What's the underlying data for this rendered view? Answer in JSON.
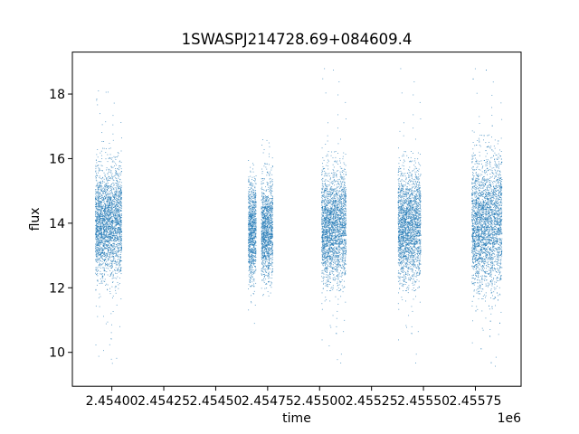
{
  "chart_data": {
    "type": "scatter",
    "title": "1SWASPJ214728.69+084609.4",
    "xlabel": "time",
    "ylabel": "flux",
    "x_offset_label": "1e6",
    "xlim": [
      2.45381,
      2.45597
    ],
    "ylim": [
      8.95,
      19.3
    ],
    "x_ticks": [
      2.454,
      2.45425,
      2.4545,
      2.45475,
      2.455,
      2.45525,
      2.4555,
      2.45575
    ],
    "x_tick_labels": [
      "2.45400",
      "2.45425",
      "2.45450",
      "2.45475",
      "2.45500",
      "2.45525",
      "2.45550",
      "2.45575"
    ],
    "y_ticks": [
      10,
      12,
      14,
      16,
      18
    ],
    "y_tick_labels": [
      "10",
      "12",
      "14",
      "16",
      "18"
    ],
    "grid": false,
    "marker_color": "#1f77b4",
    "clusters": [
      {
        "x_range": [
          2.453921,
          2.454048
        ],
        "y_center": 14.0,
        "y_spread": 0.85,
        "y_range": [
          9.4,
          18.3
        ]
      },
      {
        "x_range": [
          2.454657,
          2.454695
        ],
        "y_center": 13.8,
        "y_spread": 0.75,
        "y_range": [
          10.8,
          16.3
        ]
      },
      {
        "x_range": [
          2.45472,
          2.454775
        ],
        "y_center": 13.8,
        "y_spread": 0.75,
        "y_range": [
          11.6,
          16.7
        ]
      },
      {
        "x_range": [
          2.45501,
          2.455128
        ],
        "y_center": 13.9,
        "y_spread": 0.85,
        "y_range": [
          9.5,
          19.0
        ]
      },
      {
        "x_range": [
          2.455378,
          2.455487
        ],
        "y_center": 13.9,
        "y_spread": 0.85,
        "y_range": [
          9.5,
          19.0
        ]
      },
      {
        "x_range": [
          2.455733,
          2.455878
        ],
        "y_center": 14.0,
        "y_spread": 1.0,
        "y_range": [
          9.4,
          19.0
        ]
      }
    ]
  }
}
